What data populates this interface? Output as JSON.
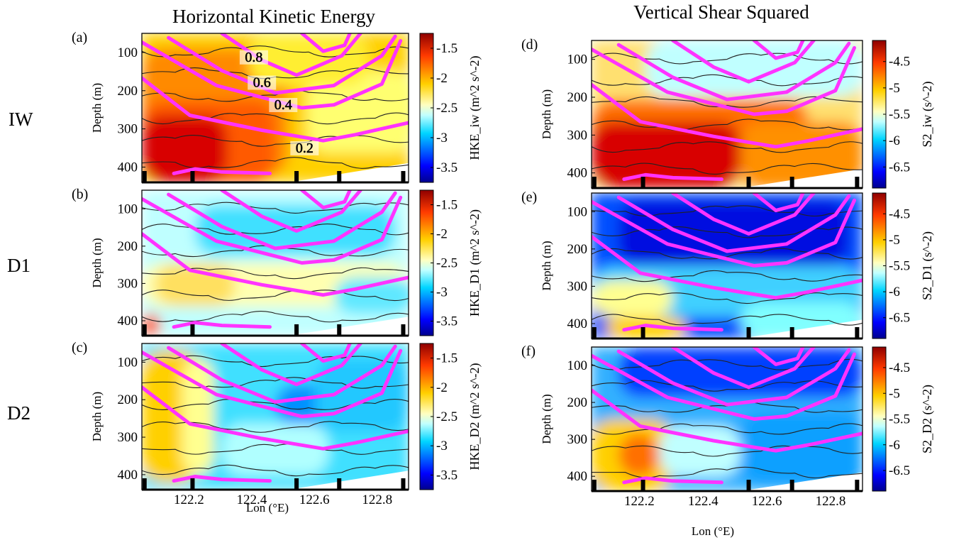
{
  "titles": {
    "left": "Horizontal Kinetic Energy",
    "right": "Vertical Shear Squared"
  },
  "row_labels": [
    "IW",
    "D1",
    "D2"
  ],
  "x_axis": {
    "label_left": "Lon (°E)",
    "label_right": "Lon (°E)",
    "ticks": [
      "122.2",
      "122.4",
      "122.6",
      "122.8"
    ]
  },
  "y_axis": {
    "label": "Depth (m)",
    "ticks": [
      "100",
      "200",
      "300",
      "400"
    ]
  },
  "colorbars": {
    "hke": {
      "ticks": [
        "-1.5",
        "-2",
        "-2.5",
        "-3",
        "-3.5"
      ],
      "labels": [
        "HKE_iw (m^2 s^-2)",
        "HKE_D1 (m^2 s^-2)",
        "HKE_D2 (m^2 s^-2)"
      ]
    },
    "s2": {
      "ticks": [
        "-4.5",
        "-5",
        "-5.5",
        "-6",
        "-6.5"
      ],
      "labels": [
        "S2_iw (s^-2)",
        "S2_D1 (s^-2)",
        "S2_D2 (s^-2)"
      ]
    }
  },
  "contour_labels": [
    "0.8",
    "0.6",
    "0.4",
    "0.2"
  ],
  "chart_data": [
    {
      "panel": "a",
      "type": "heatmap",
      "title": "Horizontal Kinetic Energy",
      "row": "IW",
      "variable": "HKE_iw",
      "units": "m^2 s^-2",
      "colorbar_range": [
        -3.75,
        -1.25
      ],
      "xlim": [
        122.05,
        122.9
      ],
      "ylim": [
        440,
        50
      ],
      "xlabel": "",
      "ylabel": "Depth (m)"
    },
    {
      "panel": "b",
      "type": "heatmap",
      "row": "D1",
      "variable": "HKE_D1",
      "units": "m^2 s^-2",
      "colorbar_range": [
        -3.75,
        -1.25
      ],
      "xlim": [
        122.05,
        122.9
      ],
      "ylim": [
        440,
        50
      ],
      "xlabel": "",
      "ylabel": "Depth (m)"
    },
    {
      "panel": "c",
      "type": "heatmap",
      "row": "D2",
      "variable": "HKE_D2",
      "units": "m^2 s^-2",
      "colorbar_range": [
        -3.75,
        -1.25
      ],
      "xlim": [
        122.05,
        122.9
      ],
      "ylim": [
        440,
        50
      ],
      "xlabel": "Lon (°E)",
      "ylabel": "Depth (m)"
    },
    {
      "panel": "d",
      "type": "heatmap",
      "title": "Vertical Shear Squared",
      "row": "IW",
      "variable": "S2_iw",
      "units": "s^-2",
      "colorbar_range": [
        -6.9,
        -4.1
      ],
      "xlim": [
        122.05,
        122.9
      ],
      "ylim": [
        440,
        50
      ],
      "xlabel": "",
      "ylabel": "Depth (m)"
    },
    {
      "panel": "e",
      "type": "heatmap",
      "row": "D1",
      "variable": "S2_D1",
      "units": "s^-2",
      "colorbar_range": [
        -6.9,
        -4.1
      ],
      "xlim": [
        122.05,
        122.9
      ],
      "ylim": [
        440,
        50
      ],
      "xlabel": "",
      "ylabel": "Depth (m)"
    },
    {
      "panel": "f",
      "type": "heatmap",
      "row": "D2",
      "variable": "S2_D2",
      "units": "s^-2",
      "colorbar_range": [
        -6.9,
        -4.1
      ],
      "xlim": [
        122.05,
        122.9
      ],
      "ylim": [
        440,
        50
      ],
      "xlabel": "Lon (°E)",
      "ylabel": "Depth (m)"
    }
  ],
  "colors": {
    "contour_overlay": "#ff33ff",
    "thin_contour": "#222222",
    "colormap": [
      "#00008f",
      "#0000ff",
      "#006fff",
      "#00dfff",
      "#bfffff",
      "#ffffbf",
      "#ffdf00",
      "#ff6f00",
      "#ff0000",
      "#8f0000"
    ]
  }
}
